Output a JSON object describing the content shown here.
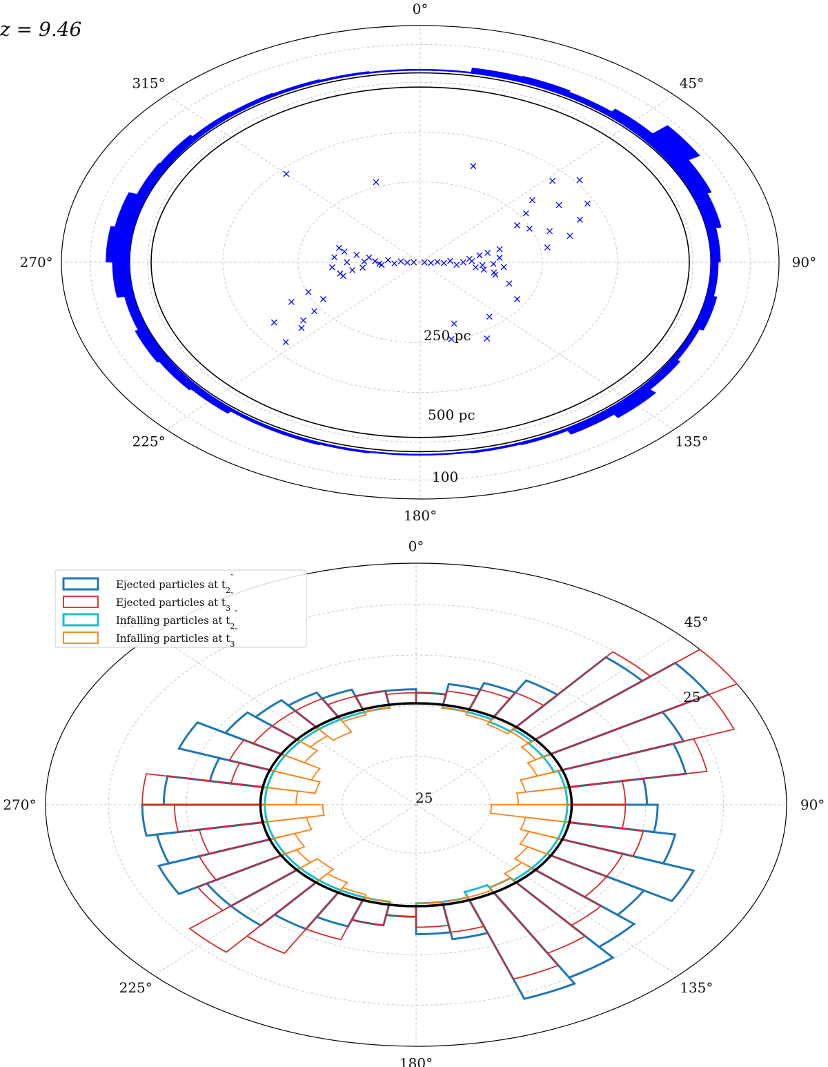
{
  "chart_data": [
    {
      "type": "polar-scatter-with-histogram",
      "redshift_label": "z = 9.46",
      "angle_ticks": [
        "0°",
        "45°",
        "90°",
        "135°",
        "180°",
        "225°",
        "270°",
        "315°"
      ],
      "angle_tick_values": [
        0,
        45,
        90,
        135,
        180,
        225,
        270,
        315
      ],
      "radial_labels": [
        "250 pc",
        "500 pc",
        "100"
      ],
      "scatter_rmax_pc": 600,
      "scatter_points": [
        {
          "theta": 92,
          "r": 10
        },
        {
          "theta": 95,
          "r": 25
        },
        {
          "theta": 88,
          "r": 40
        },
        {
          "theta": 93,
          "r": 55
        },
        {
          "theta": 86,
          "r": 70
        },
        {
          "theta": 96,
          "r": 85
        },
        {
          "theta": 90,
          "r": 100
        },
        {
          "theta": 84,
          "r": 115
        },
        {
          "theta": 98,
          "r": 130
        },
        {
          "theta": 80,
          "r": 140
        },
        {
          "theta": 100,
          "r": 150
        },
        {
          "theta": 78,
          "r": 160
        },
        {
          "theta": 92,
          "r": 170
        },
        {
          "theta": 102,
          "r": 175
        },
        {
          "theta": 85,
          "r": 185
        },
        {
          "theta": 76,
          "r": 190
        },
        {
          "theta": 95,
          "r": 195
        },
        {
          "theta": 104,
          "r": 180
        },
        {
          "theta": 88,
          "r": 120
        },
        {
          "theta": 94,
          "r": 145
        },
        {
          "theta": 270,
          "r": 15
        },
        {
          "theta": 268,
          "r": 30
        },
        {
          "theta": 274,
          "r": 45
        },
        {
          "theta": 266,
          "r": 60
        },
        {
          "theta": 276,
          "r": 75
        },
        {
          "theta": 264,
          "r": 90
        },
        {
          "theta": 272,
          "r": 105
        },
        {
          "theta": 278,
          "r": 120
        },
        {
          "theta": 262,
          "r": 135
        },
        {
          "theta": 280,
          "r": 150
        },
        {
          "theta": 260,
          "r": 160
        },
        {
          "theta": 270,
          "r": 170
        },
        {
          "theta": 282,
          "r": 180
        },
        {
          "theta": 258,
          "r": 190
        },
        {
          "theta": 275,
          "r": 200
        },
        {
          "theta": 265,
          "r": 205
        },
        {
          "theta": 285,
          "r": 195
        },
        {
          "theta": 255,
          "r": 185
        },
        {
          "theta": 271,
          "r": 130
        },
        {
          "theta": 267,
          "r": 95
        },
        {
          "theta": 60,
          "r": 260
        },
        {
          "theta": 55,
          "r": 300
        },
        {
          "theta": 65,
          "r": 280
        },
        {
          "theta": 50,
          "r": 340
        },
        {
          "theta": 70,
          "r": 320
        },
        {
          "theta": 58,
          "r": 380
        },
        {
          "theta": 47,
          "r": 420
        },
        {
          "theta": 75,
          "r": 360
        },
        {
          "theta": 62,
          "r": 440
        },
        {
          "theta": 52,
          "r": 470
        },
        {
          "theta": 68,
          "r": 400
        },
        {
          "theta": 80,
          "r": 300
        },
        {
          "theta": 240,
          "r": 260
        },
        {
          "theta": 235,
          "r": 300
        },
        {
          "theta": 245,
          "r": 330
        },
        {
          "theta": 230,
          "r": 360
        },
        {
          "theta": 238,
          "r": 400
        },
        {
          "theta": 228,
          "r": 420
        },
        {
          "theta": 248,
          "r": 280
        },
        {
          "theta": 233,
          "r": 340
        },
        {
          "theta": 160,
          "r": 230
        },
        {
          "theta": 165,
          "r": 280
        },
        {
          "theta": 150,
          "r": 310
        },
        {
          "theta": 140,
          "r": 250
        },
        {
          "theta": 315,
          "r": 440
        },
        {
          "theta": 20,
          "r": 360
        },
        {
          "theta": 340,
          "r": 300
        },
        {
          "theta": 110,
          "r": 220
        },
        {
          "theta": 120,
          "r": 260
        }
      ],
      "histogram_bins_deg": [
        0,
        10,
        20,
        30,
        40,
        50,
        60,
        70,
        80,
        90,
        100,
        110,
        120,
        130,
        140,
        150,
        160,
        170,
        180,
        190,
        200,
        210,
        220,
        230,
        240,
        250,
        260,
        270,
        280,
        290,
        300,
        310,
        320,
        330,
        340,
        350
      ],
      "histogram_counts": [
        2,
        8,
        9,
        7,
        12,
        30,
        18,
        14,
        9,
        7,
        10,
        6,
        9,
        16,
        10,
        4,
        3,
        2,
        2,
        3,
        4,
        4,
        8,
        10,
        12,
        9,
        16,
        22,
        18,
        10,
        9,
        6,
        5,
        4,
        3,
        2
      ]
    },
    {
      "type": "polar-histogram",
      "angle_ticks": [
        "0°",
        "45°",
        "90°",
        "135°",
        "180°",
        "225°",
        "270°",
        "315°"
      ],
      "angle_tick_values": [
        0,
        45,
        90,
        135,
        180,
        225,
        270,
        315
      ],
      "radial_labels": [
        "25",
        "25"
      ],
      "bin_width_deg": 10,
      "series": [
        {
          "name": "Ejected particles at t₂″",
          "color": "#1f77b4",
          "values": [
            3,
            6,
            8,
            12,
            26,
            34,
            24,
            22,
            14,
            16,
            20,
            26,
            20,
            24,
            28,
            30,
            10,
            8,
            3,
            6,
            8,
            12,
            16,
            16,
            22,
            20,
            22,
            18,
            10,
            18,
            12,
            10,
            8,
            6,
            4,
            4
          ]
        },
        {
          "name": "Ejected particles at t₃″",
          "color": "#d62728",
          "values": [
            3,
            4,
            6,
            8,
            28,
            40,
            34,
            26,
            10,
            10,
            14,
            12,
            12,
            16,
            20,
            24,
            8,
            6,
            3,
            6,
            12,
            20,
            26,
            18,
            14,
            12,
            16,
            22,
            6,
            8,
            6,
            6,
            6,
            4,
            4,
            3
          ]
        },
        {
          "name": "Infalling particles at t₂″",
          "color": "#17becf",
          "values": [
            0,
            1,
            1,
            2,
            1,
            2,
            2,
            1,
            1,
            1,
            1,
            1,
            1,
            1,
            2,
            3,
            1,
            1,
            0,
            1,
            1,
            1,
            1,
            1,
            1,
            1,
            1,
            1,
            1,
            1,
            1,
            1,
            1,
            1,
            1,
            0
          ]
        },
        {
          "name": "Infalling particles at t₃″",
          "color": "#ff7f0e",
          "values": [
            0,
            1,
            2,
            3,
            2,
            4,
            6,
            10,
            12,
            18,
            10,
            8,
            6,
            4,
            2,
            1,
            1,
            1,
            0,
            1,
            2,
            4,
            6,
            4,
            6,
            10,
            14,
            8,
            12,
            10,
            6,
            4,
            6,
            2,
            1,
            0
          ]
        }
      ],
      "legend_labels": [
        "Ejected particles at t",
        "Ejected particles at t",
        "Infalling particles at t",
        "Infalling particles at t"
      ],
      "legend_subscripts": [
        "2",
        "3",
        "2",
        "3"
      ],
      "legend_placement": "top-left"
    }
  ]
}
